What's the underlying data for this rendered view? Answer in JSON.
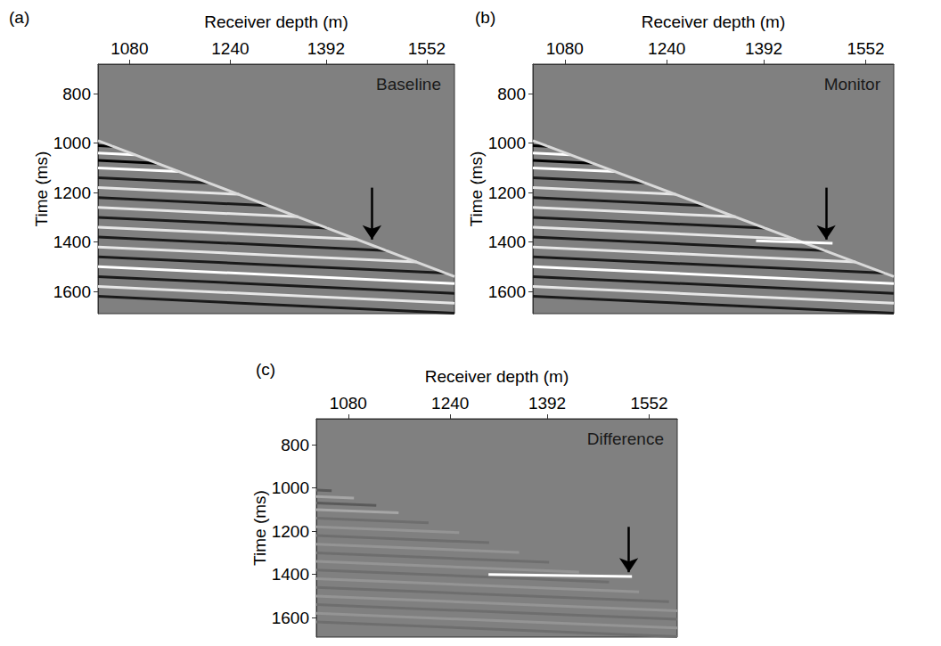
{
  "chart_data": [
    {
      "type": "line",
      "panel": "(a)",
      "title": "Baseline",
      "x_label": "Receiver depth (m)",
      "y_label": "Time (ms)",
      "xlim": [
        1030,
        1596
      ],
      "ylim": [
        680,
        1690
      ],
      "xticks": [
        1080,
        1240,
        1392,
        1552
      ],
      "yticks": [
        800,
        1000,
        1200,
        1400,
        1600
      ],
      "grid": false,
      "series": [
        {
          "color": "#000000",
          "x": [
            1030,
            1054
          ],
          "values": [
            1010,
            1013
          ]
        },
        {
          "color": "#ffffff",
          "x": [
            1030,
            1089
          ],
          "values": [
            1040,
            1047
          ]
        },
        {
          "color": "#000000",
          "x": [
            1030,
            1124
          ],
          "values": [
            1070,
            1081
          ]
        },
        {
          "color": "#ffffff",
          "x": [
            1030,
            1159
          ],
          "values": [
            1100,
            1115
          ]
        },
        {
          "color": "#1a1a1a",
          "x": [
            1030,
            1206
          ],
          "values": [
            1140,
            1161
          ]
        },
        {
          "color": "#e6e6e6",
          "x": [
            1030,
            1254
          ],
          "values": [
            1180,
            1207
          ]
        },
        {
          "color": "#1a1a1a",
          "x": [
            1030,
            1301
          ],
          "values": [
            1220,
            1253
          ]
        },
        {
          "color": "#e6e6e6",
          "x": [
            1030,
            1348
          ],
          "values": [
            1260,
            1298
          ]
        },
        {
          "color": "#1a1a1a",
          "x": [
            1030,
            1395
          ],
          "values": [
            1300,
            1344
          ]
        },
        {
          "color": "#e6e6e6",
          "x": [
            1030,
            1442
          ],
          "values": [
            1340,
            1389
          ]
        },
        {
          "color": "#1a1a1a",
          "x": [
            1030,
            1489
          ],
          "values": [
            1380,
            1435
          ]
        },
        {
          "color": "#e6e6e6",
          "x": [
            1030,
            1536
          ],
          "values": [
            1420,
            1481
          ]
        },
        {
          "color": "#1a1a1a",
          "x": [
            1030,
            1583
          ],
          "values": [
            1460,
            1526
          ]
        },
        {
          "color": "#ffffff",
          "x": [
            1030,
            1596
          ],
          "values": [
            1500,
            1568
          ]
        },
        {
          "color": "#1a1a1a",
          "x": [
            1030,
            1596
          ],
          "values": [
            1540,
            1608
          ]
        },
        {
          "color": "#e6e6e6",
          "x": [
            1030,
            1596
          ],
          "values": [
            1580,
            1648
          ]
        },
        {
          "color": "#1a1a1a",
          "x": [
            1030,
            1596
          ],
          "values": [
            1620,
            1688
          ]
        },
        {
          "color": "#d9d9d9",
          "x": [
            1030,
            1596
          ],
          "values": [
            990,
            1540
          ]
        }
      ],
      "annotations": [
        {
          "type": "arrow",
          "x": [
            1465,
            1465
          ],
          "values": [
            1180,
            1390
          ]
        }
      ]
    },
    {
      "type": "line",
      "panel": "(b)",
      "title": "Monitor",
      "x_label": "Receiver depth (m)",
      "y_label": "Time (ms)",
      "xlim": [
        1030,
        1596
      ],
      "ylim": [
        680,
        1690
      ],
      "xticks": [
        1080,
        1240,
        1392,
        1552
      ],
      "yticks": [
        800,
        1000,
        1200,
        1400,
        1600
      ],
      "grid": false,
      "series": [
        {
          "color": "#000000",
          "x": [
            1030,
            1054
          ],
          "values": [
            1010,
            1013
          ]
        },
        {
          "color": "#ffffff",
          "x": [
            1030,
            1089
          ],
          "values": [
            1040,
            1047
          ]
        },
        {
          "color": "#000000",
          "x": [
            1030,
            1124
          ],
          "values": [
            1070,
            1081
          ]
        },
        {
          "color": "#ffffff",
          "x": [
            1030,
            1159
          ],
          "values": [
            1100,
            1115
          ]
        },
        {
          "color": "#1a1a1a",
          "x": [
            1030,
            1206
          ],
          "values": [
            1140,
            1161
          ]
        },
        {
          "color": "#e6e6e6",
          "x": [
            1030,
            1254
          ],
          "values": [
            1180,
            1207
          ]
        },
        {
          "color": "#1a1a1a",
          "x": [
            1030,
            1301
          ],
          "values": [
            1220,
            1253
          ]
        },
        {
          "color": "#e6e6e6",
          "x": [
            1030,
            1348
          ],
          "values": [
            1260,
            1298
          ]
        },
        {
          "color": "#1a1a1a",
          "x": [
            1030,
            1395
          ],
          "values": [
            1300,
            1344
          ]
        },
        {
          "color": "#e6e6e6",
          "x": [
            1030,
            1442
          ],
          "values": [
            1340,
            1389
          ]
        },
        {
          "color": "#1a1a1a",
          "x": [
            1030,
            1489
          ],
          "values": [
            1380,
            1435
          ]
        },
        {
          "color": "#e6e6e6",
          "x": [
            1030,
            1536
          ],
          "values": [
            1420,
            1481
          ]
        },
        {
          "color": "#1a1a1a",
          "x": [
            1030,
            1583
          ],
          "values": [
            1460,
            1526
          ]
        },
        {
          "color": "#ffffff",
          "x": [
            1030,
            1596
          ],
          "values": [
            1500,
            1568
          ]
        },
        {
          "color": "#1a1a1a",
          "x": [
            1030,
            1596
          ],
          "values": [
            1540,
            1608
          ]
        },
        {
          "color": "#e6e6e6",
          "x": [
            1030,
            1596
          ],
          "values": [
            1580,
            1648
          ]
        },
        {
          "color": "#1a1a1a",
          "x": [
            1030,
            1596
          ],
          "values": [
            1620,
            1688
          ]
        },
        {
          "color": "#d9d9d9",
          "x": [
            1030,
            1596
          ],
          "values": [
            990,
            1540
          ]
        },
        {
          "color": "#ffffff",
          "x": [
            1380,
            1500
          ],
          "values": [
            1395,
            1405
          ]
        }
      ],
      "annotations": [
        {
          "type": "arrow",
          "x": [
            1490,
            1490
          ],
          "values": [
            1180,
            1390
          ]
        }
      ]
    },
    {
      "type": "line",
      "panel": "(c)",
      "title": "Difference",
      "x_label": "Receiver depth (m)",
      "y_label": "Time (ms)",
      "xlim": [
        1030,
        1596
      ],
      "ylim": [
        680,
        1690
      ],
      "xticks": [
        1080,
        1240,
        1392,
        1552
      ],
      "yticks": [
        800,
        1000,
        1200,
        1400,
        1600
      ],
      "grid": false,
      "series": [
        {
          "color": "#5a5a5a",
          "x": [
            1030,
            1054
          ],
          "values": [
            1010,
            1013
          ]
        },
        {
          "color": "#a6a6a6",
          "x": [
            1030,
            1089
          ],
          "values": [
            1040,
            1047
          ]
        },
        {
          "color": "#5a5a5a",
          "x": [
            1030,
            1124
          ],
          "values": [
            1070,
            1081
          ]
        },
        {
          "color": "#a6a6a6",
          "x": [
            1030,
            1159
          ],
          "values": [
            1100,
            1115
          ]
        },
        {
          "color": "#6e6e6e",
          "x": [
            1030,
            1206
          ],
          "values": [
            1140,
            1161
          ]
        },
        {
          "color": "#949494",
          "x": [
            1030,
            1254
          ],
          "values": [
            1180,
            1207
          ]
        },
        {
          "color": "#6e6e6e",
          "x": [
            1030,
            1301
          ],
          "values": [
            1220,
            1253
          ]
        },
        {
          "color": "#949494",
          "x": [
            1030,
            1348
          ],
          "values": [
            1260,
            1298
          ]
        },
        {
          "color": "#6e6e6e",
          "x": [
            1030,
            1395
          ],
          "values": [
            1300,
            1344
          ]
        },
        {
          "color": "#949494",
          "x": [
            1030,
            1442
          ],
          "values": [
            1340,
            1389
          ]
        },
        {
          "color": "#6e6e6e",
          "x": [
            1030,
            1489
          ],
          "values": [
            1380,
            1435
          ]
        },
        {
          "color": "#949494",
          "x": [
            1030,
            1536
          ],
          "values": [
            1420,
            1481
          ]
        },
        {
          "color": "#6e6e6e",
          "x": [
            1030,
            1583
          ],
          "values": [
            1460,
            1526
          ]
        },
        {
          "color": "#949494",
          "x": [
            1030,
            1596
          ],
          "values": [
            1500,
            1568
          ]
        },
        {
          "color": "#6e6e6e",
          "x": [
            1030,
            1596
          ],
          "values": [
            1540,
            1608
          ]
        },
        {
          "color": "#949494",
          "x": [
            1030,
            1596
          ],
          "values": [
            1580,
            1648
          ]
        },
        {
          "color": "#6e6e6e",
          "x": [
            1030,
            1596
          ],
          "values": [
            1620,
            1688
          ]
        },
        {
          "color": "#ffffff",
          "x": [
            1300,
            1525
          ],
          "values": [
            1400,
            1410
          ]
        }
      ],
      "annotations": [
        {
          "type": "arrow",
          "x": [
            1520,
            1520
          ],
          "values": [
            1180,
            1390
          ]
        }
      ]
    }
  ]
}
